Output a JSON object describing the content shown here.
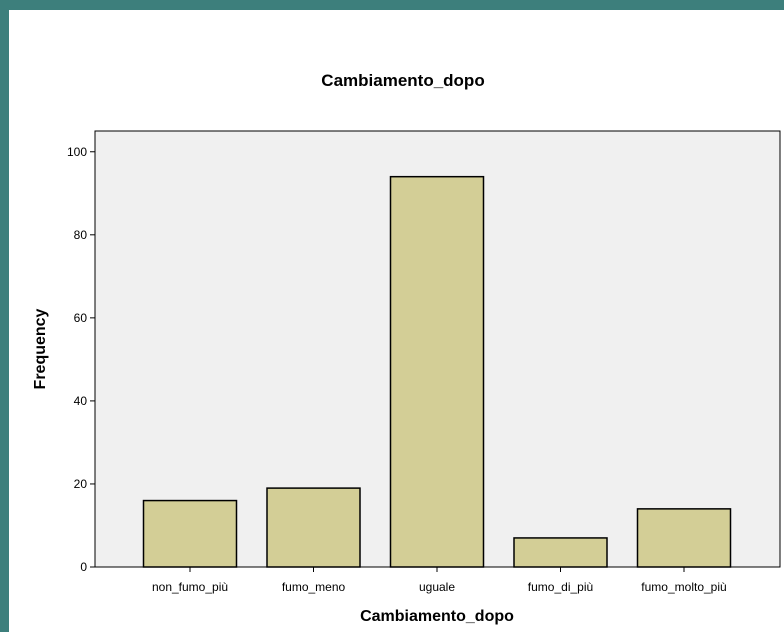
{
  "colors": {
    "page_border": "#3d7f7c",
    "plot_background": "#f0f0f0",
    "bar_fill": "#d3ce96",
    "bar_stroke": "#000000"
  },
  "chart_data": {
    "type": "bar",
    "title": "Cambiamento_dopo",
    "xlabel": "Cambiamento_dopo",
    "ylabel": "Frequency",
    "categories": [
      "non_fumo_più",
      "fumo_meno",
      "uguale",
      "fumo_di_più",
      "fumo_molto_più"
    ],
    "values": [
      16,
      19,
      94,
      7,
      14
    ],
    "ylim": [
      0,
      105
    ],
    "yticks": [
      "0",
      "20",
      "40",
      "60",
      "80",
      "100"
    ],
    "grid": false,
    "legend": "none"
  }
}
